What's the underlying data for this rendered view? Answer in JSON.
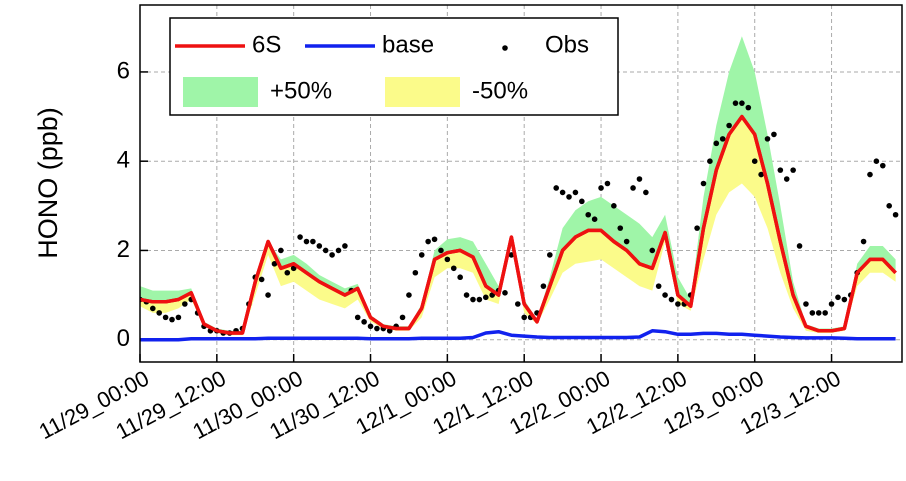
{
  "chart_data": {
    "type": "line",
    "ylabel": "HONO (ppb)",
    "xlim": [
      0,
      119
    ],
    "ylim": [
      -0.5,
      7.5
    ],
    "xticks": [
      {
        "value": 0,
        "label": "11/29_00:00"
      },
      {
        "value": 12,
        "label": "11/29_12:00"
      },
      {
        "value": 24,
        "label": "11/30_00:00"
      },
      {
        "value": 36,
        "label": "11/30_12:00"
      },
      {
        "value": 48,
        "label": "12/1_00:00"
      },
      {
        "value": 60,
        "label": "12/1_12:00"
      },
      {
        "value": 72,
        "label": "12/2_00:00"
      },
      {
        "value": 84,
        "label": "12/2_12:00"
      },
      {
        "value": 96,
        "label": "12/3_00:00"
      },
      {
        "value": 108,
        "label": "12/3_12:00"
      }
    ],
    "yticks": [
      0,
      2,
      4,
      6
    ],
    "grid": true,
    "legend": "upper left",
    "x": [
      0,
      2,
      4,
      6,
      8,
      10,
      12,
      14,
      16,
      18,
      20,
      22,
      24,
      26,
      28,
      30,
      32,
      34,
      36,
      38,
      40,
      42,
      44,
      46,
      48,
      50,
      52,
      54,
      56,
      58,
      60,
      62,
      64,
      66,
      68,
      70,
      72,
      74,
      76,
      78,
      80,
      82,
      84,
      86,
      88,
      90,
      92,
      94,
      96,
      98,
      100,
      102,
      104,
      106,
      108,
      110,
      112,
      114,
      116,
      118
    ],
    "series": [
      {
        "name": "6S",
        "color": "#ee1111",
        "style": "line",
        "values": [
          0.9,
          0.85,
          0.85,
          0.9,
          1.05,
          0.35,
          0.2,
          0.15,
          0.15,
          1.3,
          2.2,
          1.6,
          1.7,
          1.5,
          1.3,
          1.15,
          1.0,
          1.15,
          0.5,
          0.3,
          0.25,
          0.25,
          0.7,
          1.8,
          1.95,
          2.0,
          1.85,
          1.2,
          1.0,
          2.3,
          0.8,
          0.4,
          1.2,
          2.0,
          2.3,
          2.45,
          2.45,
          2.2,
          2.0,
          1.7,
          1.6,
          2.4,
          1.0,
          0.75,
          2.5,
          3.8,
          4.6,
          5.0,
          4.6,
          3.5,
          2.2,
          1.0,
          0.3,
          0.2,
          0.2,
          0.25,
          1.5,
          1.8,
          1.8,
          1.5
        ]
      },
      {
        "name": "base",
        "color": "#1122ee",
        "style": "line",
        "values": [
          0,
          0,
          0,
          0,
          0.02,
          0.02,
          0.02,
          0.02,
          0.02,
          0.02,
          0.03,
          0.03,
          0.03,
          0.03,
          0.03,
          0.03,
          0.03,
          0.03,
          0.02,
          0.02,
          0.02,
          0.02,
          0.03,
          0.03,
          0.03,
          0.03,
          0.05,
          0.15,
          0.18,
          0.1,
          0.08,
          0.06,
          0.05,
          0.05,
          0.05,
          0.05,
          0.05,
          0.05,
          0.05,
          0.06,
          0.2,
          0.18,
          0.12,
          0.12,
          0.14,
          0.14,
          0.12,
          0.12,
          0.1,
          0.08,
          0.06,
          0.05,
          0.04,
          0.04,
          0.04,
          0.03,
          0.02,
          0.02,
          0.02,
          0.02
        ]
      },
      {
        "name": "Obs",
        "color": "#000000",
        "style": "marker",
        "x": [
          0,
          1,
          2,
          3,
          4,
          5,
          6,
          7,
          8,
          9,
          10,
          11,
          12,
          13,
          14,
          15,
          16,
          17,
          18,
          19,
          20,
          21,
          22,
          23,
          24,
          25,
          26,
          27,
          28,
          29,
          30,
          31,
          32,
          33,
          34,
          35,
          36,
          37,
          38,
          39,
          40,
          41,
          42,
          43,
          44,
          45,
          46,
          47,
          48,
          49,
          50,
          51,
          52,
          53,
          54,
          55,
          56,
          57,
          58,
          59,
          60,
          61,
          62,
          63,
          64,
          65,
          66,
          67,
          68,
          69,
          70,
          71,
          72,
          73,
          74,
          75,
          76,
          77,
          78,
          79,
          80,
          81,
          82,
          83,
          84,
          85,
          86,
          87,
          88,
          89,
          90,
          91,
          92,
          93,
          94,
          95,
          96,
          97,
          98,
          99,
          100,
          101,
          102,
          103,
          104,
          105,
          106,
          107,
          108,
          109,
          110,
          111,
          112,
          113,
          114,
          115,
          116,
          117,
          118
        ],
        "values": [
          0.9,
          0.85,
          0.7,
          0.6,
          0.5,
          0.45,
          0.5,
          0.8,
          0.9,
          0.6,
          0.3,
          0.2,
          0.2,
          0.15,
          0.15,
          0.2,
          0.25,
          0.8,
          1.4,
          1.35,
          1.0,
          1.7,
          2.0,
          1.5,
          1.6,
          2.3,
          2.2,
          2.2,
          2.1,
          2.0,
          1.9,
          2.0,
          2.1,
          1.1,
          0.5,
          0.4,
          0.3,
          0.25,
          0.25,
          0.2,
          0.3,
          0.5,
          1.0,
          1.5,
          1.9,
          2.2,
          2.25,
          2.0,
          1.8,
          1.6,
          1.4,
          1.0,
          0.9,
          0.9,
          0.95,
          1.0,
          1.1,
          1.05,
          1.9,
          0.8,
          0.5,
          0.5,
          0.6,
          1.2,
          1.9,
          3.4,
          3.3,
          3.2,
          3.3,
          3.1,
          2.8,
          2.7,
          3.4,
          3.5,
          3.0,
          2.5,
          2.2,
          3.4,
          3.6,
          3.3,
          2.0,
          1.2,
          1.0,
          0.9,
          0.8,
          0.8,
          1.0,
          2.5,
          3.5,
          4.0,
          4.4,
          4.5,
          4.8,
          5.3,
          5.3,
          5.2,
          4.0,
          3.7,
          4.5,
          4.6,
          3.8,
          3.6,
          3.8,
          2.1,
          0.8,
          0.6,
          0.6,
          0.6,
          0.8,
          0.95,
          0.9,
          1.0,
          1.5,
          2.2,
          3.7,
          4.0,
          3.9,
          3.0,
          2.8
        ]
      },
      {
        "name": "+50%",
        "color": "#9ff5a8",
        "style": "band",
        "values": [
          1.2,
          1.1,
          1.1,
          1.1,
          1.15,
          0.4,
          0.25,
          0.2,
          0.2,
          1.4,
          2.2,
          1.8,
          1.9,
          1.7,
          1.45,
          1.3,
          1.15,
          1.25,
          0.55,
          0.35,
          0.3,
          0.3,
          0.8,
          2.0,
          2.25,
          2.3,
          2.2,
          1.7,
          1.2,
          2.35,
          0.9,
          0.45,
          1.4,
          2.5,
          2.9,
          3.1,
          3.2,
          3.0,
          2.8,
          2.6,
          2.3,
          2.8,
          1.4,
          0.9,
          3.2,
          4.8,
          6.0,
          6.8,
          6.0,
          4.6,
          3.0,
          1.3,
          0.35,
          0.25,
          0.25,
          0.3,
          1.7,
          2.1,
          2.1,
          1.8
        ]
      },
      {
        "name": "-50%",
        "color": "#fbfb8a",
        "style": "band",
        "values": [
          0.75,
          0.6,
          0.6,
          0.7,
          0.9,
          0.3,
          0.15,
          0.1,
          0.1,
          1.0,
          1.9,
          1.2,
          1.3,
          1.1,
          0.9,
          0.8,
          0.7,
          0.9,
          0.4,
          0.25,
          0.2,
          0.2,
          0.5,
          1.4,
          1.6,
          1.6,
          1.5,
          0.9,
          0.8,
          2.2,
          0.6,
          0.35,
          0.9,
          1.5,
          1.7,
          1.75,
          1.8,
          1.6,
          1.4,
          1.2,
          1.1,
          2.2,
          0.8,
          0.65,
          1.8,
          2.8,
          3.3,
          3.5,
          3.2,
          2.5,
          1.5,
          0.7,
          0.2,
          0.15,
          0.15,
          0.2,
          1.2,
          1.5,
          1.5,
          1.3
        ]
      }
    ]
  }
}
